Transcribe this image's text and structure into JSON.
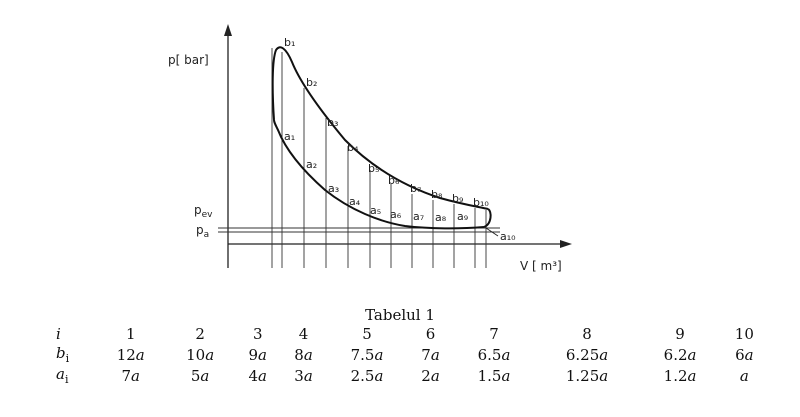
{
  "diagram": {
    "y_axis_label": "p[ bar]",
    "x_axis_label": "V [ m³]",
    "p_ev_label": "p",
    "p_ev_sub": "ev",
    "p_a_label": "p",
    "p_a_sub": "a",
    "upper_curve_points": [
      "b₁",
      "b₂",
      "b₃",
      "b₄",
      "b₅",
      "b₆",
      "b₇",
      "b₈",
      "b₉",
      "b₁₀"
    ],
    "lower_curve_points": [
      "a₁",
      "a₂",
      "a₃",
      "a₄",
      "a₅",
      "a₆",
      "a₇",
      "a₈",
      "a₉",
      "a₁₀"
    ]
  },
  "table": {
    "caption": "Tabelul 1",
    "header_label": "i",
    "row_b_label": "b",
    "row_b_sub": "i",
    "row_a_label": "a",
    "row_a_sub": "i",
    "i_values": [
      "1",
      "2",
      "3",
      "4",
      "5",
      "6",
      "7",
      "8",
      "9",
      "10"
    ],
    "b_values": [
      {
        "num": "12",
        "sym": "a"
      },
      {
        "num": "10",
        "sym": "a"
      },
      {
        "num": "9",
        "sym": "a"
      },
      {
        "num": "8",
        "sym": "a"
      },
      {
        "num": "7.5",
        "sym": "a"
      },
      {
        "num": "7",
        "sym": "a"
      },
      {
        "num": "6.5",
        "sym": "a"
      },
      {
        "num": "6.25",
        "sym": "a"
      },
      {
        "num": "6.2",
        "sym": "a"
      },
      {
        "num": "6",
        "sym": "a"
      }
    ],
    "a_values": [
      {
        "num": "7",
        "sym": "a"
      },
      {
        "num": "5",
        "sym": "a"
      },
      {
        "num": "4",
        "sym": "a"
      },
      {
        "num": "3",
        "sym": "a"
      },
      {
        "num": "2.5",
        "sym": "a"
      },
      {
        "num": "2",
        "sym": "a"
      },
      {
        "num": "1.5",
        "sym": "a"
      },
      {
        "num": "1.25",
        "sym": "a"
      },
      {
        "num": "1.2",
        "sym": "a"
      },
      {
        "num": "",
        "sym": "a"
      }
    ]
  }
}
